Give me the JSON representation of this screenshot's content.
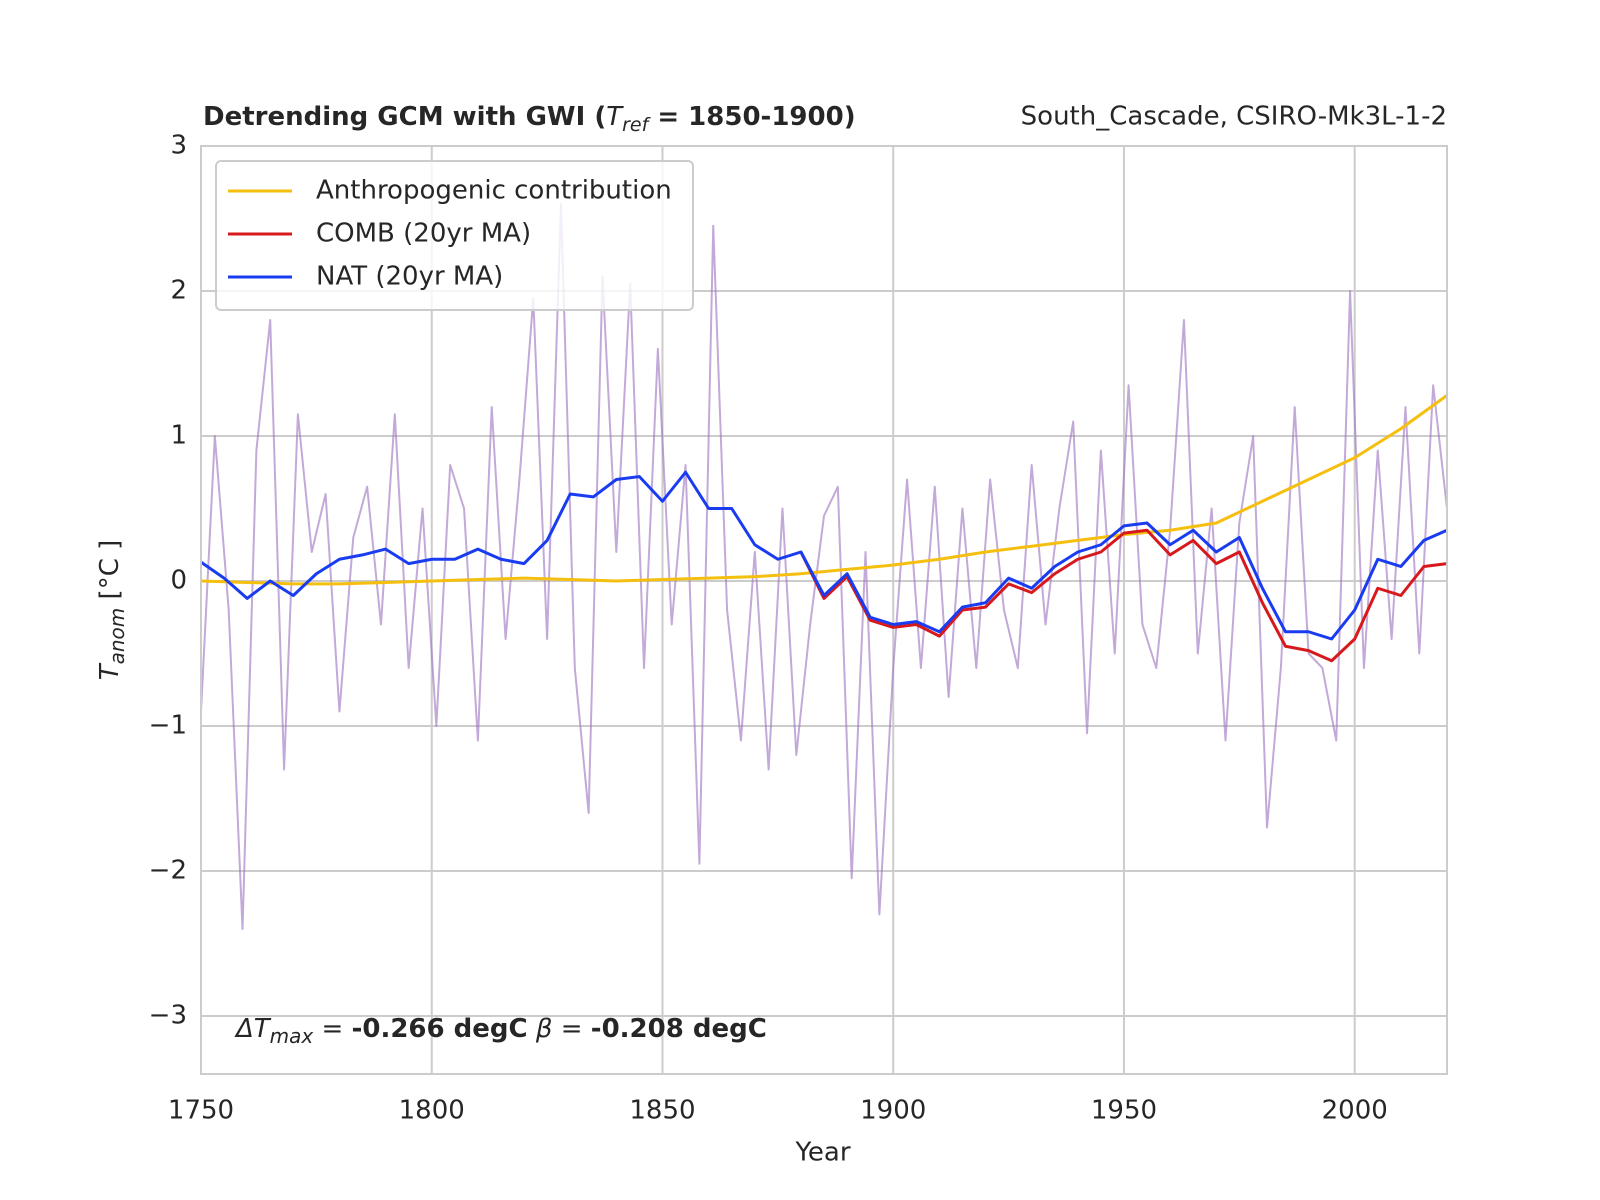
{
  "chart_data": {
    "type": "line",
    "title_parts": [
      "Detrending GCM with GWI (",
      "T",
      "ref",
      " = 1850-1900)"
    ],
    "subtitle": "South_Cascade, CSIRO-Mk3L-1-2",
    "x_label": "Year",
    "y_label_parts": [
      "T",
      "anom",
      " [°C ]"
    ],
    "annotation_parts": [
      "ΔT",
      "max",
      " = ",
      "-0.266 degC",
      " β = ",
      "-0.208 degC"
    ],
    "xlim": [
      1750,
      2020
    ],
    "ylim": [
      -3.4,
      3
    ],
    "xticks": [
      1750,
      1800,
      1850,
      1900,
      1950,
      2000
    ],
    "yticks": [
      {
        "value": -3,
        "label": "−3"
      },
      {
        "value": -2,
        "label": "−2"
      },
      {
        "value": -1,
        "label": "−1"
      },
      0,
      1,
      2,
      3
    ],
    "grid": true,
    "legend": "upper left",
    "series": [
      {
        "color": "#9b6fc0",
        "x": [
          1750,
          1753,
          1756,
          1759,
          1762,
          1765,
          1768,
          1771,
          1774,
          1777,
          1780,
          1783,
          1786,
          1789,
          1792,
          1795,
          1798,
          1801,
          1804,
          1807,
          1810,
          1813,
          1816,
          1819,
          1822,
          1825,
          1828,
          1831,
          1834,
          1837,
          1840,
          1843,
          1846,
          1849,
          1852,
          1855,
          1858,
          1861,
          1864,
          1867,
          1870,
          1873,
          1876,
          1879,
          1882,
          1885,
          1888,
          1891,
          1894,
          1897,
          1900,
          1903,
          1906,
          1909,
          1912,
          1915,
          1918,
          1921,
          1924,
          1927,
          1930,
          1933,
          1936,
          1939,
          1942,
          1945,
          1948,
          1951,
          1954,
          1957,
          1960,
          1963,
          1966,
          1969,
          1972,
          1975,
          1978,
          1981,
          1984,
          1987,
          1990,
          1993,
          1996,
          1999,
          2002,
          2005,
          2008,
          2011,
          2014,
          2017,
          2020
        ],
        "values": [
          -0.9,
          1.0,
          -0.2,
          -2.4,
          0.9,
          1.8,
          -1.3,
          1.15,
          0.2,
          0.6,
          -0.9,
          0.3,
          0.65,
          -0.3,
          1.15,
          -0.6,
          0.5,
          -1.0,
          0.8,
          0.5,
          -1.1,
          1.2,
          -0.4,
          0.7,
          1.95,
          -0.4,
          2.6,
          -0.6,
          -1.6,
          2.1,
          0.2,
          2.05,
          -0.6,
          1.6,
          -0.3,
          0.8,
          -1.95,
          2.45,
          -0.2,
          -1.1,
          0.2,
          -1.3,
          0.5,
          -1.2,
          -0.3,
          0.45,
          0.65,
          -2.05,
          0.2,
          -2.3,
          -0.6,
          0.7,
          -0.6,
          0.65,
          -0.8,
          0.5,
          -0.6,
          0.7,
          -0.2,
          -0.6,
          0.8,
          -0.3,
          0.5,
          1.1,
          -1.05,
          0.9,
          -0.5,
          1.35,
          -0.3,
          -0.6,
          0.35,
          1.8,
          -0.5,
          0.5,
          -1.1,
          0.4,
          1.0,
          -1.7,
          -0.6,
          1.2,
          -0.5,
          -0.6,
          -1.1,
          2.0,
          -0.6,
          0.9,
          -0.4,
          1.2,
          -0.5,
          1.35,
          0.5
        ]
      },
      {
        "name": "Anthropogenic contribution",
        "color": "#f5bf0f",
        "x": [
          1750,
          1760,
          1770,
          1780,
          1790,
          1800,
          1810,
          1820,
          1830,
          1840,
          1850,
          1860,
          1870,
          1880,
          1890,
          1900,
          1910,
          1920,
          1930,
          1940,
          1950,
          1960,
          1970,
          1980,
          1990,
          2000,
          2010,
          2020
        ],
        "values": [
          0,
          -0.01,
          -0.02,
          -0.02,
          -0.01,
          0,
          0.01,
          0.02,
          0.01,
          0,
          0.01,
          0.02,
          0.03,
          0.05,
          0.08,
          0.11,
          0.15,
          0.2,
          0.24,
          0.28,
          0.32,
          0.35,
          0.4,
          0.55,
          0.7,
          0.85,
          1.05,
          1.28
        ]
      },
      {
        "name": "COMB (20yr MA)",
        "color": "#d7191c",
        "x": [
          1880,
          1885,
          1890,
          1895,
          1900,
          1905,
          1910,
          1915,
          1920,
          1925,
          1930,
          1935,
          1940,
          1945,
          1950,
          1955,
          1960,
          1965,
          1970,
          1975,
          1980,
          1985,
          1990,
          1995,
          2000,
          2005,
          2010,
          2015,
          2020
        ],
        "values": [
          0.2,
          -0.12,
          0.03,
          -0.27,
          -0.32,
          -0.3,
          -0.38,
          -0.2,
          -0.18,
          -0.02,
          -0.08,
          0.05,
          0.15,
          0.2,
          0.33,
          0.35,
          0.18,
          0.28,
          0.12,
          0.2,
          -0.15,
          -0.45,
          -0.48,
          -0.55,
          -0.4,
          -0.05,
          -0.1,
          0.1,
          0.12
        ]
      },
      {
        "name": "NAT (20yr MA)",
        "color": "#1a3cf0",
        "x": [
          1750,
          1755,
          1760,
          1765,
          1770,
          1775,
          1780,
          1785,
          1790,
          1795,
          1800,
          1805,
          1810,
          1815,
          1820,
          1825,
          1830,
          1835,
          1840,
          1845,
          1850,
          1855,
          1860,
          1865,
          1870,
          1875,
          1880,
          1885,
          1890,
          1895,
          1900,
          1905,
          1910,
          1915,
          1920,
          1925,
          1930,
          1935,
          1940,
          1945,
          1950,
          1955,
          1960,
          1965,
          1970,
          1975,
          1980,
          1985,
          1990,
          1995,
          2000,
          2005,
          2010,
          2015,
          2020
        ],
        "values": [
          0.13,
          0.02,
          -0.12,
          0.0,
          -0.1,
          0.05,
          0.15,
          0.18,
          0.22,
          0.12,
          0.15,
          0.15,
          0.22,
          0.15,
          0.12,
          0.28,
          0.6,
          0.58,
          0.7,
          0.72,
          0.55,
          0.75,
          0.5,
          0.5,
          0.25,
          0.15,
          0.2,
          -0.1,
          0.05,
          -0.25,
          -0.3,
          -0.28,
          -0.35,
          -0.18,
          -0.15,
          0.02,
          -0.05,
          0.1,
          0.2,
          0.25,
          0.38,
          0.4,
          0.25,
          0.35,
          0.2,
          0.3,
          -0.05,
          -0.35,
          -0.35,
          -0.4,
          -0.2,
          0.15,
          0.1,
          0.28,
          0.35
        ]
      }
    ]
  }
}
